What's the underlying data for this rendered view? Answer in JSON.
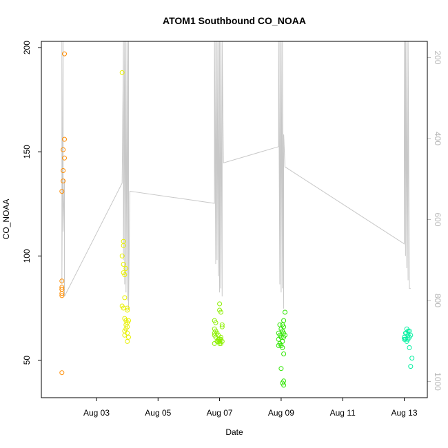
{
  "chart_data": {
    "type": "scatter",
    "title": "ATOM1 Southbound CO_NOAA",
    "xlabel": "Date",
    "ylabel": "CO_NOAA",
    "x_unit": "date (August, same year)",
    "xlim": [
      "Aug 01 05:00",
      "Aug 13 18:00"
    ],
    "ylim": [
      32,
      203
    ],
    "y_ticks": [
      50,
      100,
      150,
      200
    ],
    "x_ticks": [
      {
        "value": "Aug 03",
        "label": "Aug 03"
      },
      {
        "value": "Aug 05",
        "label": "Aug 05"
      },
      {
        "value": "Aug 07",
        "label": "Aug 07"
      },
      {
        "value": "Aug 09",
        "label": "Aug 09"
      },
      {
        "value": "Aug 11",
        "label": "Aug 11"
      },
      {
        "value": "Aug 13",
        "label": "Aug 13"
      }
    ],
    "y2_reversed": true,
    "y2lim": [
      1040,
      160
    ],
    "y2_ticks": [
      200,
      400,
      600,
      800,
      1000
    ],
    "grid": false,
    "colors": {
      "flight_1": "#ff8c00",
      "flight_2": "#e8f000",
      "flight_3": "#8cf000",
      "flight_4": "#2ee600",
      "flight_5": "#00f0a0",
      "secondary_line": "#c8c8c8"
    },
    "series": [
      {
        "color": "#ff8c00",
        "points": [
          [
            "Aug 01 23:00",
            197
          ],
          [
            "Aug 01 23:00",
            156
          ],
          [
            "Aug 01 22:00",
            151
          ],
          [
            "Aug 01 23:00",
            147
          ],
          [
            "Aug 01 22:00",
            141
          ],
          [
            "Aug 01 22:00",
            136
          ],
          [
            "Aug 01 21:00",
            131
          ],
          [
            "Aug 01 21:00",
            88
          ],
          [
            "Aug 01 21:00",
            85
          ],
          [
            "Aug 01 21:00",
            84
          ],
          [
            "Aug 01 21:00",
            84
          ],
          [
            "Aug 01 21:00",
            82
          ],
          [
            "Aug 01 21:00",
            81
          ],
          [
            "Aug 01 21:00",
            44
          ]
        ]
      },
      {
        "color": "#e8f000",
        "points": [
          [
            "Aug 03 20:00",
            188
          ],
          [
            "Aug 03 21:00",
            107
          ],
          [
            "Aug 03 21:00",
            105
          ],
          [
            "Aug 03 20:00",
            100
          ],
          [
            "Aug 03 21:00",
            96
          ],
          [
            "Aug 03 21:00",
            92
          ],
          [
            "Aug 03 22:00",
            91
          ],
          [
            "Aug 03 23:00",
            94
          ],
          [
            "Aug 03 22:00",
            80
          ],
          [
            "Aug 03 20:00",
            76
          ],
          [
            "Aug 03 21:00",
            75
          ],
          [
            "Aug 04 00:00",
            75
          ],
          [
            "Aug 04 00:00",
            74
          ],
          [
            "Aug 03 22:00",
            70
          ],
          [
            "Aug 03 23:00",
            69
          ],
          [
            "Aug 04 01:00",
            69
          ],
          [
            "Aug 04 00:00",
            68
          ],
          [
            "Aug 03 23:00",
            67
          ],
          [
            "Aug 04 00:00",
            66
          ],
          [
            "Aug 03 23:00",
            65
          ],
          [
            "Aug 03 22:00",
            64
          ],
          [
            "Aug 04 00:00",
            63
          ],
          [
            "Aug 03 22:00",
            62
          ],
          [
            "Aug 04 01:00",
            61
          ],
          [
            "Aug 04 00:00",
            59
          ]
        ]
      },
      {
        "color": "#8cf000",
        "points": [
          [
            "Aug 07 00:00",
            77
          ],
          [
            "Aug 07 00:00",
            74
          ],
          [
            "Aug 07 01:00",
            73
          ],
          [
            "Aug 06 20:00",
            69
          ],
          [
            "Aug 06 21:00",
            68
          ],
          [
            "Aug 07 02:00",
            67
          ],
          [
            "Aug 07 02:00",
            66
          ],
          [
            "Aug 06 20:00",
            65
          ],
          [
            "Aug 06 21:00",
            64
          ],
          [
            "Aug 06 20:00",
            63
          ],
          [
            "Aug 06 22:00",
            63
          ],
          [
            "Aug 06 20:00",
            62
          ],
          [
            "Aug 06 23:00",
            62
          ],
          [
            "Aug 07 01:00",
            61
          ],
          [
            "Aug 06 21:00",
            61
          ],
          [
            "Aug 06 23:00",
            60
          ],
          [
            "Aug 07 00:00",
            60
          ],
          [
            "Aug 07 01:00",
            60
          ],
          [
            "Aug 06 22:00",
            59
          ],
          [
            "Aug 07 00:00",
            59
          ],
          [
            "Aug 06 23:00",
            59
          ],
          [
            "Aug 07 02:00",
            59
          ],
          [
            "Aug 06 20:00",
            58
          ],
          [
            "Aug 07 01:00",
            58
          ],
          [
            "Aug 07 00:00",
            58
          ]
        ]
      },
      {
        "color": "#2ee600",
        "points": [
          [
            "Aug 09 03:00",
            73
          ],
          [
            "Aug 09 02:00",
            69
          ],
          [
            "Aug 08 23:00",
            67
          ],
          [
            "Aug 09 01:00",
            67
          ],
          [
            "Aug 09 02:00",
            66
          ],
          [
            "Aug 09 00:00",
            65
          ],
          [
            "Aug 09 01:00",
            64
          ],
          [
            "Aug 08 22:00",
            63
          ],
          [
            "Aug 09 02:00",
            63
          ],
          [
            "Aug 08 23:00",
            62
          ],
          [
            "Aug 09 03:00",
            62
          ],
          [
            "Aug 09 00:00",
            61
          ],
          [
            "Aug 09 02:00",
            61
          ],
          [
            "Aug 08 22:00",
            60
          ],
          [
            "Aug 09 01:00",
            59
          ],
          [
            "Aug 08 23:00",
            58
          ],
          [
            "Aug 09 00:00",
            57
          ],
          [
            "Aug 08 22:00",
            57
          ],
          [
            "Aug 09 01:00",
            56
          ],
          [
            "Aug 09 02:00",
            53
          ],
          [
            "Aug 09 00:00",
            46
          ],
          [
            "Aug 09 02:00",
            40
          ],
          [
            "Aug 09 01:00",
            39
          ],
          [
            "Aug 09 02:00",
            38
          ]
        ]
      },
      {
        "color": "#00f0a0",
        "points": [
          [
            "Aug 13 02:00",
            65
          ],
          [
            "Aug 13 03:00",
            64
          ],
          [
            "Aug 13 04:00",
            64
          ],
          [
            "Aug 13 01:00",
            63
          ],
          [
            "Aug 13 02:00",
            63
          ],
          [
            "Aug 13 03:00",
            62
          ],
          [
            "Aug 13 05:00",
            62
          ],
          [
            "Aug 13 00:00",
            61
          ],
          [
            "Aug 13 04:00",
            61
          ],
          [
            "Aug 13 01:00",
            60
          ],
          [
            "Aug 13 03:00",
            60
          ],
          [
            "Aug 13 00:00",
            60
          ],
          [
            "Aug 13 02:00",
            59
          ],
          [
            "Aug 13 04:00",
            56
          ],
          [
            "Aug 13 06:00",
            51
          ],
          [
            "Aug 13 05:00",
            47
          ]
        ]
      }
    ],
    "secondary_line": {
      "axis": "right",
      "color": "#c8c8c8",
      "points": [
        [
          "Aug 01 21:00",
          160
        ],
        [
          "Aug 01 21:00",
          600
        ],
        [
          "Aug 01 21:00",
          760
        ],
        [
          "Aug 01 22:00",
          160
        ],
        [
          "Aug 01 22:00",
          630
        ],
        [
          "Aug 01 23:00",
          500
        ],
        [
          "Aug 01 23:00",
          790
        ],
        [
          "Aug 03 20:00",
          510
        ],
        [
          "Aug 03 21:00",
          160
        ],
        [
          "Aug 03 21:00",
          700
        ],
        [
          "Aug 03 22:00",
          160
        ],
        [
          "Aug 03 22:00",
          760
        ],
        [
          "Aug 03 23:00",
          160
        ],
        [
          "Aug 03 23:00",
          780
        ],
        [
          "Aug 04 00:00",
          160
        ],
        [
          "Aug 04 00:00",
          800
        ],
        [
          "Aug 04 01:00",
          160
        ],
        [
          "Aug 04 01:00",
          820
        ],
        [
          "Aug 04 02:00",
          530
        ],
        [
          "Aug 06 20:00",
          560
        ],
        [
          "Aug 06 20:00",
          160
        ],
        [
          "Aug 06 21:00",
          710
        ],
        [
          "Aug 06 21:00",
          160
        ],
        [
          "Aug 06 22:00",
          700
        ],
        [
          "Aug 06 22:00",
          160
        ],
        [
          "Aug 06 23:00",
          740
        ],
        [
          "Aug 06 23:00",
          160
        ],
        [
          "Aug 07 00:00",
          780
        ],
        [
          "Aug 07 00:00",
          160
        ],
        [
          "Aug 07 01:00",
          770
        ],
        [
          "Aug 07 01:00",
          160
        ],
        [
          "Aug 07 02:00",
          790
        ],
        [
          "Aug 07 02:00",
          160
        ],
        [
          "Aug 07 03:00",
          460
        ],
        [
          "Aug 08 22:00",
          420
        ],
        [
          "Aug 08 22:00",
          160
        ],
        [
          "Aug 08 23:00",
          760
        ],
        [
          "Aug 08 23:00",
          160
        ],
        [
          "Aug 09 00:00",
          780
        ],
        [
          "Aug 09 00:00",
          160
        ],
        [
          "Aug 09 01:00",
          770
        ],
        [
          "Aug 09 01:00",
          160
        ],
        [
          "Aug 09 02:00",
          820
        ],
        [
          "Aug 09 02:00",
          390
        ],
        [
          "Aug 09 03:00",
          470
        ],
        [
          "Aug 13 00:00",
          660
        ],
        [
          "Aug 13 00:00",
          160
        ],
        [
          "Aug 13 01:00",
          690
        ],
        [
          "Aug 13 01:00",
          160
        ],
        [
          "Aug 13 02:00",
          720
        ],
        [
          "Aug 13 02:00",
          160
        ],
        [
          "Aug 13 03:00",
          750
        ],
        [
          "Aug 13 03:00",
          160
        ],
        [
          "Aug 13 04:00",
          770
        ],
        [
          "Aug 13 05:00",
          770
        ]
      ]
    }
  }
}
